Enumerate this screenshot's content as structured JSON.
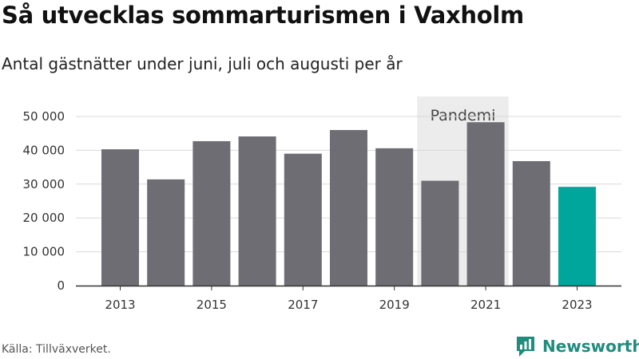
{
  "header": {
    "title": "Så utvecklas sommarturismen i Vaxholm",
    "subtitle": "Antal gästnätter under juni, juli och augusti per år"
  },
  "footer": {
    "source": "Källa: Tillväxverket.",
    "brand": "Newsworthy",
    "brand_color": "#1f8c7e"
  },
  "chart_data": {
    "type": "bar",
    "title": "Så utvecklas sommarturismen i Vaxholm",
    "subtitle": "Antal gästnätter under juni, juli och augusti per år",
    "categories": [
      "2013",
      "2014",
      "2015",
      "2016",
      "2017",
      "2018",
      "2019",
      "2020",
      "2021",
      "2022",
      "2023"
    ],
    "x_tick_labels": [
      "2013",
      "2015",
      "2017",
      "2019",
      "2021",
      "2023"
    ],
    "values": [
      40300,
      31400,
      42700,
      44100,
      39000,
      46000,
      40600,
      31000,
      48300,
      36800,
      29200
    ],
    "ylim": [
      0,
      50000
    ],
    "y_ticks": [
      0,
      10000,
      20000,
      30000,
      40000,
      50000
    ],
    "y_tick_labels": [
      "0",
      "10 000",
      "20 000",
      "30 000",
      "40 000",
      "50 000"
    ],
    "grid": true,
    "colors": {
      "bar": "#6e6d73",
      "highlight": "#00a69c",
      "band": "#ececec"
    },
    "highlight_category": "2023",
    "annotation": {
      "label": "Pandemi",
      "from": "2020",
      "to": "2021"
    }
  }
}
